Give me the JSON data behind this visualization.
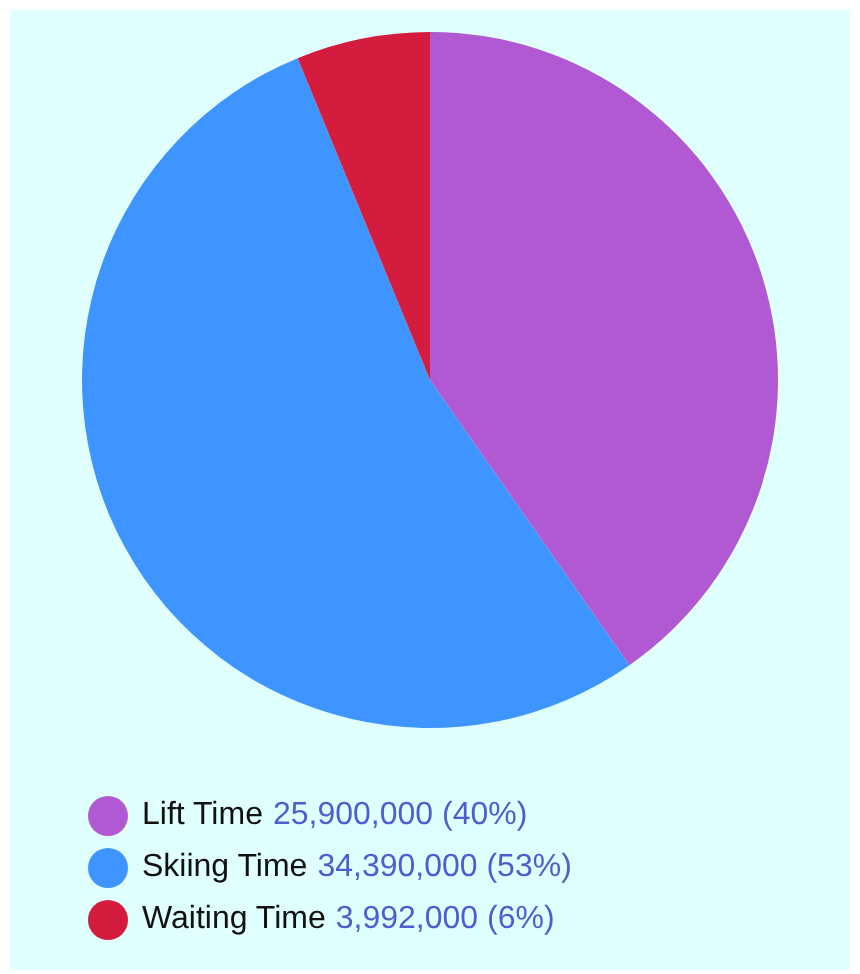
{
  "chart_data": {
    "type": "pie",
    "categories": [
      "Lift Time",
      "Skiing Time",
      "Waiting Time"
    ],
    "values": [
      25900000,
      34390000,
      3992000
    ],
    "colors": [
      "#b159d3",
      "#3f95ff",
      "#d41c3f"
    ],
    "value_labels": [
      "25,900,000 (40%)",
      "34,390,000 (53%)",
      "3,992,000 (6%)"
    ],
    "legend": "bottom"
  }
}
